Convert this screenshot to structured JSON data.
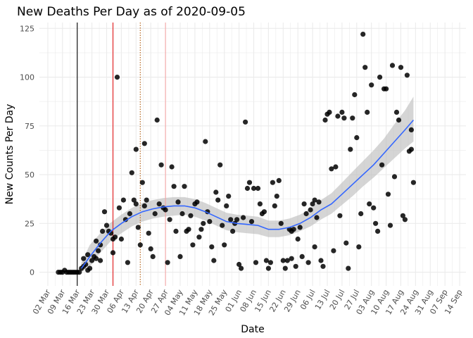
{
  "chart_data": {
    "type": "scatter",
    "title": "New Deaths Per Day as of 2020-09-05",
    "xlabel": "Date",
    "ylabel": "New Counts Per Day",
    "x_start": "2020-03-02",
    "x_range_days": [
      -4,
      199
    ],
    "ylim": [
      -7,
      128
    ],
    "yticks": [
      0,
      25,
      50,
      75,
      100,
      125
    ],
    "xtick_labels": [
      "02 Mar",
      "09 Mar",
      "16 Mar",
      "23 Mar",
      "30 Mar",
      "06 Apr",
      "13 Apr",
      "20 Apr",
      "27 Apr",
      "04 May",
      "11 May",
      "18 May",
      "25 May",
      "01 Jun",
      "08 Jun",
      "15 Jun",
      "22 Jun",
      "29 Jun",
      "06 Jul",
      "13 Jul",
      "20 Jul",
      "27 Jul",
      "03 Aug",
      "10 Aug",
      "17 Aug",
      "24 Aug",
      "31 Aug",
      "07 Sep",
      "14 Sep"
    ],
    "grid": true,
    "vertical_lines": [
      {
        "day": 14,
        "color": "#000000",
        "style": "solid"
      },
      {
        "day": 31,
        "color": "#e31a1c",
        "style": "solid"
      },
      {
        "day": 44,
        "color": "#b5651d",
        "style": "dotted"
      },
      {
        "day": 56,
        "color": "#f4a6a6",
        "style": "solid"
      }
    ],
    "points": [
      [
        5,
        0
      ],
      [
        6,
        0
      ],
      [
        7,
        0
      ],
      [
        8,
        1
      ],
      [
        9,
        0
      ],
      [
        10,
        0
      ],
      [
        11,
        0
      ],
      [
        12,
        0
      ],
      [
        13,
        0
      ],
      [
        14,
        0
      ],
      [
        15,
        0
      ],
      [
        16,
        2
      ],
      [
        17,
        7
      ],
      [
        17,
        3
      ],
      [
        18,
        4
      ],
      [
        19,
        9
      ],
      [
        19,
        1
      ],
      [
        20,
        2
      ],
      [
        21,
        6
      ],
      [
        22,
        8
      ],
      [
        23,
        16
      ],
      [
        23,
        7
      ],
      [
        24,
        11
      ],
      [
        25,
        14
      ],
      [
        25,
        6
      ],
      [
        26,
        21
      ],
      [
        27,
        31
      ],
      [
        28,
        24
      ],
      [
        29,
        21
      ],
      [
        30,
        20
      ],
      [
        31,
        10
      ],
      [
        31,
        17
      ],
      [
        32,
        18
      ],
      [
        33,
        100
      ],
      [
        34,
        33
      ],
      [
        35,
        17
      ],
      [
        36,
        37
      ],
      [
        37,
        27
      ],
      [
        38,
        5
      ],
      [
        39,
        30
      ],
      [
        40,
        51
      ],
      [
        41,
        37
      ],
      [
        42,
        63
      ],
      [
        42,
        35
      ],
      [
        43,
        23
      ],
      [
        44,
        14
      ],
      [
        45,
        46
      ],
      [
        46,
        66
      ],
      [
        46,
        34
      ],
      [
        47,
        37
      ],
      [
        48,
        20
      ],
      [
        49,
        12
      ],
      [
        50,
        8
      ],
      [
        51,
        30
      ],
      [
        52,
        78
      ],
      [
        53,
        35
      ],
      [
        54,
        55
      ],
      [
        55,
        33
      ],
      [
        56,
        32
      ],
      [
        57,
        5
      ],
      [
        58,
        27
      ],
      [
        59,
        54
      ],
      [
        60,
        44
      ],
      [
        61,
        21
      ],
      [
        62,
        36
      ],
      [
        63,
        8
      ],
      [
        64,
        30
      ],
      [
        65,
        44
      ],
      [
        66,
        21
      ],
      [
        67,
        22
      ],
      [
        68,
        29
      ],
      [
        69,
        14
      ],
      [
        70,
        35
      ],
      [
        71,
        36
      ],
      [
        72,
        18
      ],
      [
        73,
        22
      ],
      [
        74,
        25
      ],
      [
        75,
        67
      ],
      [
        76,
        31
      ],
      [
        77,
        26
      ],
      [
        78,
        13
      ],
      [
        79,
        6
      ],
      [
        80,
        41
      ],
      [
        81,
        37
      ],
      [
        82,
        55
      ],
      [
        83,
        24
      ],
      [
        84,
        14
      ],
      [
        85,
        34
      ],
      [
        86,
        39
      ],
      [
        87,
        27
      ],
      [
        88,
        21
      ],
      [
        89,
        25
      ],
      [
        90,
        27
      ],
      [
        91,
        4
      ],
      [
        92,
        2
      ],
      [
        93,
        28
      ],
      [
        94,
        77
      ],
      [
        95,
        43
      ],
      [
        96,
        46
      ],
      [
        97,
        26
      ],
      [
        98,
        43
      ],
      [
        99,
        5
      ],
      [
        100,
        43
      ],
      [
        101,
        35
      ],
      [
        102,
        30
      ],
      [
        103,
        31
      ],
      [
        104,
        6
      ],
      [
        105,
        2
      ],
      [
        106,
        5
      ],
      [
        107,
        46
      ],
      [
        108,
        34
      ],
      [
        109,
        39
      ],
      [
        110,
        47
      ],
      [
        111,
        25
      ],
      [
        112,
        6
      ],
      [
        113,
        2
      ],
      [
        114,
        6
      ],
      [
        115,
        22
      ],
      [
        116,
        21
      ],
      [
        116,
        7
      ],
      [
        117,
        22
      ],
      [
        118,
        3
      ],
      [
        119,
        17
      ],
      [
        120,
        23
      ],
      [
        121,
        8
      ],
      [
        122,
        35
      ],
      [
        123,
        30
      ],
      [
        124,
        5
      ],
      [
        125,
        32
      ],
      [
        126,
        35
      ],
      [
        127,
        37
      ],
      [
        127,
        13
      ],
      [
        128,
        28
      ],
      [
        129,
        36
      ],
      [
        130,
        6
      ],
      [
        131,
        3
      ],
      [
        132,
        78
      ],
      [
        133,
        81
      ],
      [
        134,
        82
      ],
      [
        135,
        53
      ],
      [
        136,
        11
      ],
      [
        137,
        54
      ],
      [
        138,
        80
      ],
      [
        139,
        29
      ],
      [
        140,
        82
      ],
      [
        141,
        79
      ],
      [
        142,
        15
      ],
      [
        143,
        2
      ],
      [
        144,
        63
      ],
      [
        145,
        79
      ],
      [
        146,
        91
      ],
      [
        147,
        69
      ],
      [
        148,
        13
      ],
      [
        149,
        30
      ],
      [
        150,
        122
      ],
      [
        151,
        105
      ],
      [
        152,
        82
      ],
      [
        153,
        35
      ],
      [
        154,
        96
      ],
      [
        155,
        33
      ],
      [
        156,
        25
      ],
      [
        157,
        21
      ],
      [
        158,
        100
      ],
      [
        159,
        55
      ],
      [
        160,
        94
      ],
      [
        161,
        94
      ],
      [
        162,
        40
      ],
      [
        163,
        24
      ],
      [
        164,
        106
      ],
      [
        165,
        49
      ],
      [
        166,
        82
      ],
      [
        167,
        78
      ],
      [
        168,
        105
      ],
      [
        169,
        29
      ],
      [
        170,
        27
      ],
      [
        171,
        101
      ],
      [
        172,
        62
      ],
      [
        173,
        73
      ],
      [
        173,
        63
      ],
      [
        174,
        46
      ]
    ],
    "smooth": {
      "x": [
        16,
        20,
        25,
        30,
        35,
        40,
        45,
        50,
        55,
        60,
        65,
        70,
        75,
        80,
        85,
        90,
        95,
        100,
        105,
        110,
        115,
        120,
        125,
        130,
        135,
        140,
        145,
        150,
        155,
        160,
        165,
        170,
        174
      ],
      "y": [
        2,
        8,
        15,
        21,
        25,
        28.5,
        31,
        32.5,
        33.5,
        34,
        34,
        33,
        31,
        28.5,
        26,
        25,
        24.5,
        24,
        22,
        22,
        23,
        25,
        28,
        32,
        35,
        40,
        45,
        50,
        55,
        61,
        67,
        73,
        78
      ],
      "lower": [
        0,
        3,
        10,
        16,
        20,
        23.5,
        26,
        27.5,
        28.5,
        29,
        29.5,
        28.5,
        26.5,
        24,
        21.5,
        20.5,
        20,
        19.5,
        18,
        18,
        19,
        21,
        23.5,
        27,
        30,
        34.5,
        39,
        44,
        48.5,
        53.5,
        58.5,
        63.5,
        67
      ],
      "upper": [
        5,
        14,
        20,
        25.5,
        29.5,
        33,
        35.5,
        37,
        38,
        38.5,
        38.5,
        37.5,
        35.5,
        33,
        30.5,
        29.5,
        29,
        28.5,
        26.5,
        26.5,
        27.5,
        29.5,
        32.5,
        37,
        40.5,
        46,
        51.5,
        57,
        62.5,
        68.5,
        76,
        83,
        90
      ]
    },
    "colors": {
      "points": "#000000",
      "smooth_line": "#3366ff",
      "ribbon": "#bfbfbf",
      "grid": "#ebebeb"
    }
  }
}
